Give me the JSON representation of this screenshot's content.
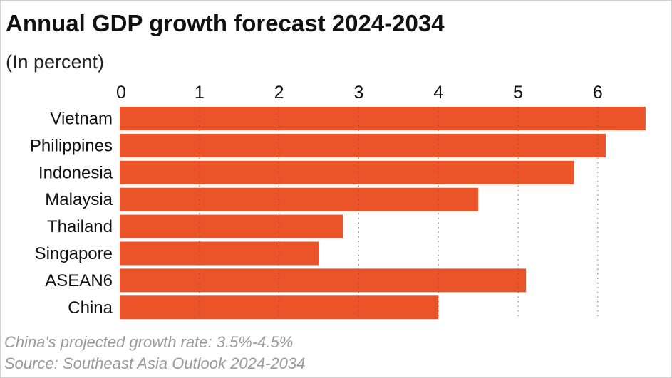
{
  "chart_data": {
    "type": "bar",
    "orientation": "horizontal",
    "title": "Annual GDP growth forecast 2024-2034",
    "subtitle": "(In percent)",
    "categories": [
      "Vietnam",
      "Philippines",
      "Indonesia",
      "Malaysia",
      "Thailand",
      "Singapore",
      "ASEAN6",
      "China"
    ],
    "values": [
      6.6,
      6.1,
      5.7,
      4.5,
      2.8,
      2.5,
      5.1,
      4.0
    ],
    "xlim": [
      0,
      6.7
    ],
    "xticks": [
      "0",
      "1",
      "2",
      "3",
      "4",
      "5",
      "6"
    ],
    "xlabel": "",
    "ylabel": "",
    "grid": "vertical dotted",
    "bar_color": "#eb5429",
    "notes": [
      "China's projected growth rate: 3.5%-4.5%",
      "Source: Southeast Asia Outlook 2024-2034"
    ]
  }
}
